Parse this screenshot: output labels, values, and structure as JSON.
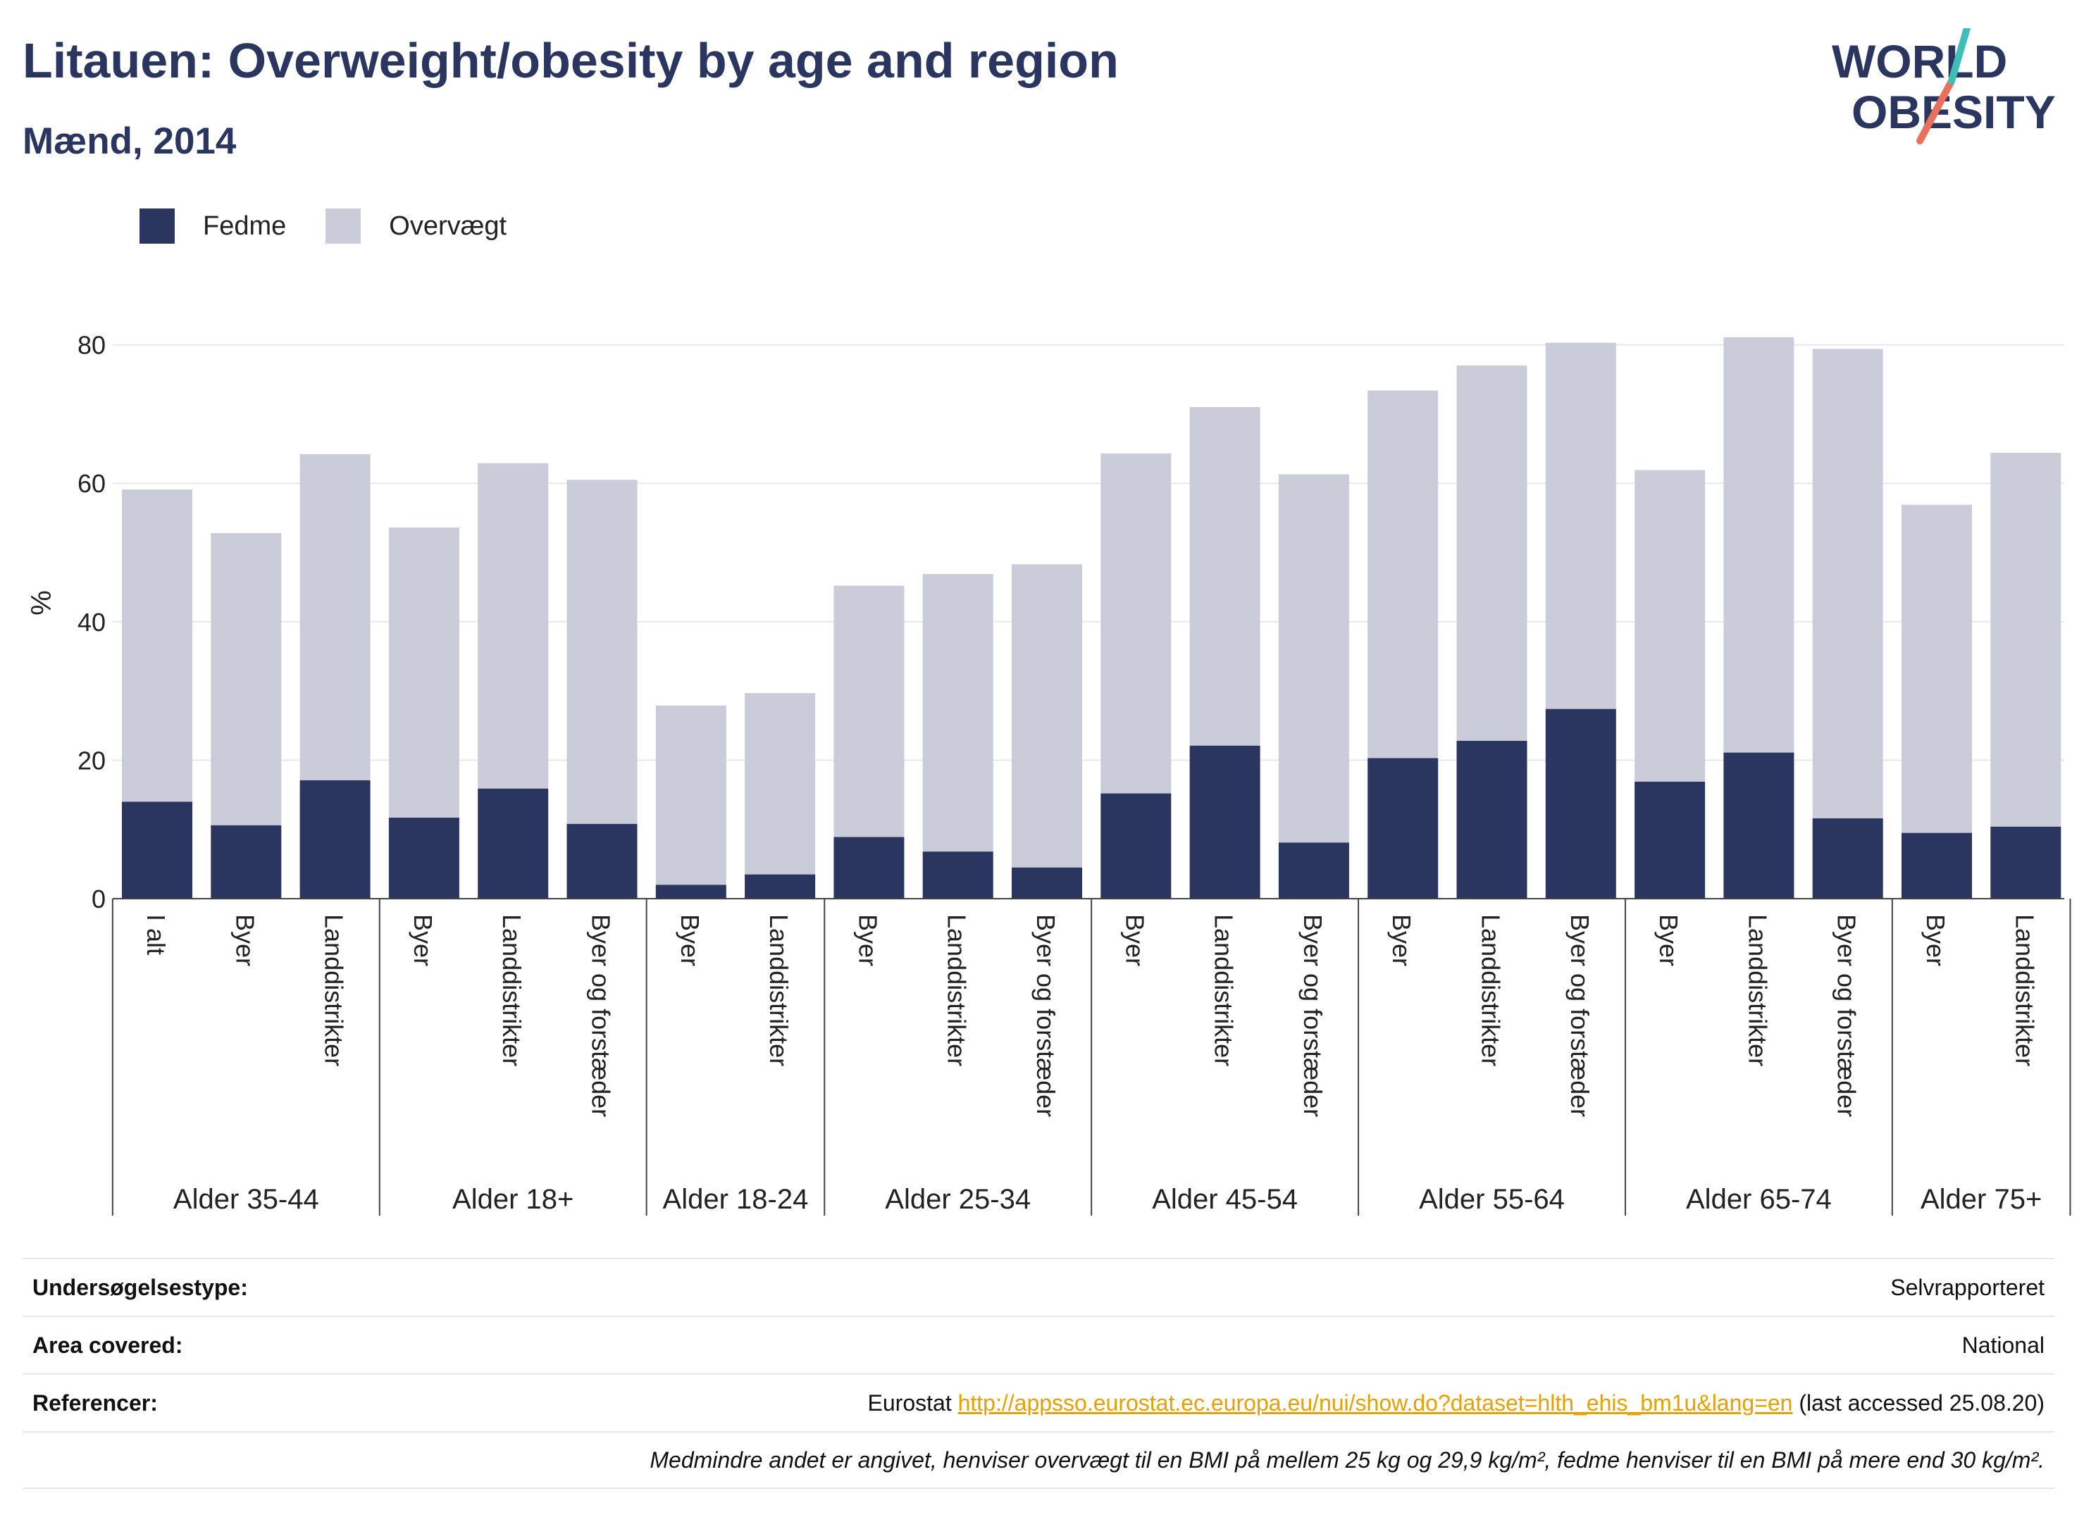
{
  "title": "Litauen: Overweight/obesity by age and region",
  "subtitle": "Mænd, 2014",
  "logo": {
    "line1": "WORLD",
    "line2": "OBESITY"
  },
  "legend": [
    {
      "label": "Fedme",
      "color": "#2a3560"
    },
    {
      "label": "Overvægt",
      "color": "#cbccd9"
    }
  ],
  "chart_data": {
    "type": "bar",
    "stacked": true,
    "ylabel": "%",
    "ylim": [
      0,
      85
    ],
    "yticks": [
      0,
      20,
      40,
      60,
      80
    ],
    "grid": true,
    "legend_position": "top-left",
    "groups": [
      {
        "label": "Alder 35-44",
        "bars": [
          {
            "label": "I alt",
            "fedme": 14.0,
            "total": 59.1
          },
          {
            "label": "Byer",
            "fedme": 10.6,
            "total": 52.8
          },
          {
            "label": "Landdistrikter",
            "fedme": 17.1,
            "total": 64.2
          }
        ]
      },
      {
        "label": "Alder 18+",
        "bars": [
          {
            "label": "Byer",
            "fedme": 11.7,
            "total": 53.6
          },
          {
            "label": "Landdistrikter",
            "fedme": 15.9,
            "total": 62.9
          },
          {
            "label": "Byer og forstæder",
            "fedme": 10.8,
            "total": 60.5
          }
        ]
      },
      {
        "label": "Alder 18-24",
        "bars": [
          {
            "label": "Byer",
            "fedme": 2.0,
            "total": 27.9
          },
          {
            "label": "Landdistrikter",
            "fedme": 3.5,
            "total": 29.7
          }
        ]
      },
      {
        "label": "Alder 25-34",
        "bars": [
          {
            "label": "Byer",
            "fedme": 8.9,
            "total": 45.2
          },
          {
            "label": "Landdistrikter",
            "fedme": 6.8,
            "total": 46.9
          },
          {
            "label": "Byer og forstæder",
            "fedme": 4.5,
            "total": 48.3
          }
        ]
      },
      {
        "label": "Alder 45-54",
        "bars": [
          {
            "label": "Byer",
            "fedme": 15.2,
            "total": 64.3
          },
          {
            "label": "Landdistrikter",
            "fedme": 22.1,
            "total": 71.0
          },
          {
            "label": "Byer og forstæder",
            "fedme": 8.1,
            "total": 61.3
          }
        ]
      },
      {
        "label": "Alder 55-64",
        "bars": [
          {
            "label": "Byer",
            "fedme": 20.3,
            "total": 73.4
          },
          {
            "label": "Landdistrikter",
            "fedme": 22.8,
            "total": 77.0
          },
          {
            "label": "Byer og forstæder",
            "fedme": 27.4,
            "total": 80.3
          }
        ]
      },
      {
        "label": "Alder 65-74",
        "bars": [
          {
            "label": "Byer",
            "fedme": 16.9,
            "total": 61.9
          },
          {
            "label": "Landdistrikter",
            "fedme": 21.1,
            "total": 81.1
          },
          {
            "label": "Byer og forstæder",
            "fedme": 11.6,
            "total": 79.4
          }
        ]
      },
      {
        "label": "Alder 75+",
        "bars": [
          {
            "label": "Byer",
            "fedme": 9.5,
            "total": 56.9
          },
          {
            "label": "Landdistrikter",
            "fedme": 10.4,
            "total": 64.4
          }
        ]
      }
    ]
  },
  "info": {
    "survey_label": "Undersøgelsestype:",
    "survey_value": "Selvrapporteret",
    "area_label": "Area covered:",
    "area_value": "National",
    "ref_label": "Referencer:",
    "ref_prefix": "Eurostat",
    "ref_link": "http://appsso.eurostat.ec.europa.eu/nui/show.do?dataset=hlth_ehis_bm1u&lang=en",
    "ref_suffix": "(last accessed 25.08.20)",
    "note": "Medmindre andet er angivet, henviser overvægt til en BMI på mellem 25 kg og 29,9 kg/m², fedme henviser til en BMI på mere end 30 kg/m²."
  }
}
